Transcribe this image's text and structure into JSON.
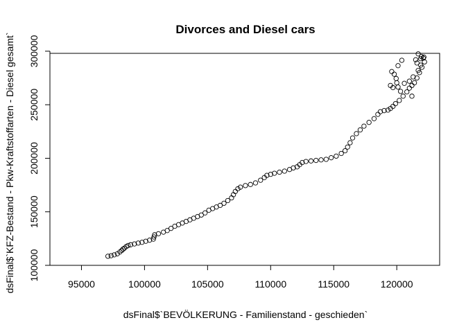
{
  "chart_data": {
    "type": "scatter",
    "title": "Divorces and Diesel cars",
    "xlabel": "dsFinal$`BEVÖLKERUNG - Familienstand - geschieden`",
    "ylabel": "dsFinal$`KFZ-Bestand - Pkw-Kraftstoffarten - Diesel gesamt`",
    "xlim": [
      92500,
      123400
    ],
    "ylim": [
      100000,
      298000
    ],
    "x_ticks": [
      95000,
      100000,
      105000,
      110000,
      115000,
      120000
    ],
    "x_tick_labels": [
      "95000",
      "100000",
      "105000",
      "110000",
      "115000",
      "120000"
    ],
    "y_ticks": [
      100000,
      150000,
      200000,
      250000,
      300000
    ],
    "y_tick_labels": [
      "100000",
      "150000",
      "200000",
      "250000",
      "300000"
    ],
    "grid": false,
    "marker": "open-circle",
    "points": [
      [
        97100,
        108500
      ],
      [
        97350,
        109000
      ],
      [
        97600,
        109800
      ],
      [
        97850,
        110800
      ],
      [
        98050,
        112500
      ],
      [
        98200,
        114000
      ],
      [
        98300,
        115200
      ],
      [
        98400,
        116000
      ],
      [
        98550,
        117500
      ],
      [
        98700,
        118500
      ],
      [
        98900,
        119200
      ],
      [
        99200,
        120000
      ],
      [
        99500,
        120800
      ],
      [
        99800,
        121500
      ],
      [
        100100,
        122500
      ],
      [
        100400,
        123500
      ],
      [
        100700,
        124500
      ],
      [
        100750,
        126500
      ],
      [
        100800,
        128500
      ],
      [
        101100,
        129500
      ],
      [
        101500,
        131000
      ],
      [
        101800,
        132500
      ],
      [
        102100,
        134500
      ],
      [
        102400,
        136500
      ],
      [
        102700,
        138000
      ],
      [
        103000,
        139500
      ],
      [
        103300,
        141000
      ],
      [
        103600,
        142500
      ],
      [
        103900,
        144000
      ],
      [
        104200,
        145500
      ],
      [
        104500,
        147000
      ],
      [
        104800,
        149000
      ],
      [
        105100,
        151500
      ],
      [
        105400,
        153000
      ],
      [
        105700,
        154500
      ],
      [
        106000,
        156000
      ],
      [
        106300,
        158000
      ],
      [
        106600,
        160500
      ],
      [
        106900,
        163000
      ],
      [
        107050,
        166000
      ],
      [
        107200,
        169000
      ],
      [
        107400,
        171500
      ],
      [
        107600,
        173000
      ],
      [
        108000,
        174500
      ],
      [
        108400,
        175500
      ],
      [
        108800,
        177000
      ],
      [
        109200,
        179500
      ],
      [
        109500,
        182000
      ],
      [
        109700,
        184000
      ],
      [
        110000,
        185000
      ],
      [
        110300,
        186000
      ],
      [
        110700,
        187000
      ],
      [
        111100,
        188000
      ],
      [
        111500,
        189500
      ],
      [
        111800,
        191000
      ],
      [
        112100,
        192000
      ],
      [
        112300,
        194000
      ],
      [
        112500,
        196000
      ],
      [
        112800,
        197000
      ],
      [
        113200,
        197500
      ],
      [
        113600,
        198000
      ],
      [
        114000,
        198500
      ],
      [
        114400,
        199000
      ],
      [
        114800,
        200500
      ],
      [
        115200,
        202000
      ],
      [
        115600,
        204500
      ],
      [
        115900,
        207000
      ],
      [
        116100,
        210500
      ],
      [
        116300,
        214500
      ],
      [
        116500,
        219000
      ],
      [
        116800,
        223000
      ],
      [
        117100,
        226500
      ],
      [
        117400,
        230000
      ],
      [
        117800,
        233500
      ],
      [
        118200,
        237000
      ],
      [
        118500,
        241000
      ],
      [
        118700,
        243500
      ],
      [
        119000,
        244500
      ],
      [
        119300,
        245000
      ],
      [
        119500,
        246500
      ],
      [
        119700,
        248500
      ],
      [
        119900,
        251000
      ],
      [
        120200,
        254000
      ],
      [
        120500,
        258000
      ],
      [
        120800,
        262000
      ],
      [
        121000,
        265500
      ],
      [
        121200,
        268000
      ],
      [
        121400,
        270500
      ],
      [
        121600,
        275000
      ],
      [
        121800,
        280000
      ],
      [
        122000,
        285000
      ],
      [
        122200,
        290000
      ],
      [
        122100,
        293500
      ],
      [
        121950,
        295000
      ],
      [
        121700,
        297500
      ],
      [
        121500,
        292000
      ],
      [
        121900,
        287000
      ],
      [
        121700,
        282000
      ],
      [
        121200,
        258000
      ],
      [
        120300,
        262500
      ],
      [
        120100,
        266500
      ],
      [
        120000,
        270500
      ],
      [
        119950,
        274500
      ],
      [
        119800,
        278500
      ],
      [
        119600,
        281000
      ],
      [
        119500,
        268000
      ],
      [
        119700,
        266000
      ],
      [
        120100,
        286500
      ],
      [
        120400,
        291500
      ],
      [
        120600,
        270000
      ],
      [
        121000,
        272000
      ],
      [
        121300,
        276000
      ],
      [
        121600,
        289000
      ],
      [
        121900,
        293000
      ],
      [
        122150,
        294500
      ]
    ]
  }
}
